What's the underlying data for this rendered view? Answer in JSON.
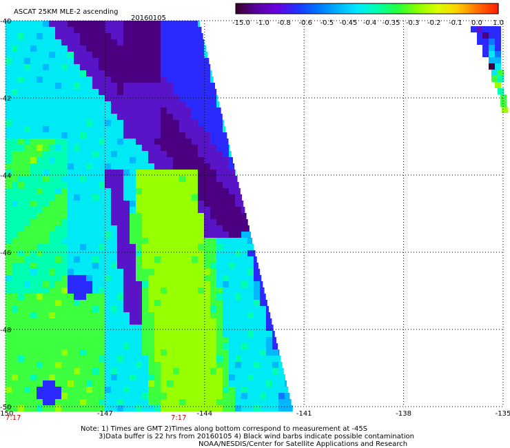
{
  "title": {
    "product": "ASCAT 25KM MLE-2 ascending",
    "date": "20160105"
  },
  "colorbar": {
    "tick_labels": [
      "-15.0",
      "-1.0",
      "-0.8",
      "-0.6",
      "-0.5",
      "-0.45",
      "-0.4",
      "-0.35",
      "-0.3",
      "-0.2",
      "-0.1",
      "0.0",
      "1.0"
    ],
    "colors": [
      "#3a0030",
      "#5a00a0",
      "#6a00e0",
      "#2030ff",
      "#0070ff",
      "#00b0ff",
      "#00e8ff",
      "#00ffb0",
      "#20ff40",
      "#8aff00",
      "#d8ff00",
      "#ffd000",
      "#ff7000",
      "#ff2000"
    ]
  },
  "axes": {
    "lon_labels": [
      "-150",
      "-147",
      "-144",
      "-141",
      "-138",
      "-135"
    ],
    "lat_labels": [
      "-40",
      "-42",
      "-44",
      "-46",
      "-48",
      "-50"
    ]
  },
  "time_labels": [
    "7:17",
    "7:17"
  ],
  "notes": {
    "line1": "Note: 1) Times are GMT 2)Times along bottom correspond to measurement at -45S",
    "line2": "3)Data buffer is 22 hrs from 20160105 4) Black wind barbs indicate possible contamination",
    "line3": "NOAA/NESDIS/Center for Satellite Applications and Research"
  },
  "map": {
    "lon_range": [
      -150,
      -135
    ],
    "lat_range": [
      -50,
      -40
    ],
    "field": "MLE-2 (color scale)",
    "swaths": [
      "main swath west of -141",
      "narrow swath edge near -135 to -136"
    ]
  }
}
